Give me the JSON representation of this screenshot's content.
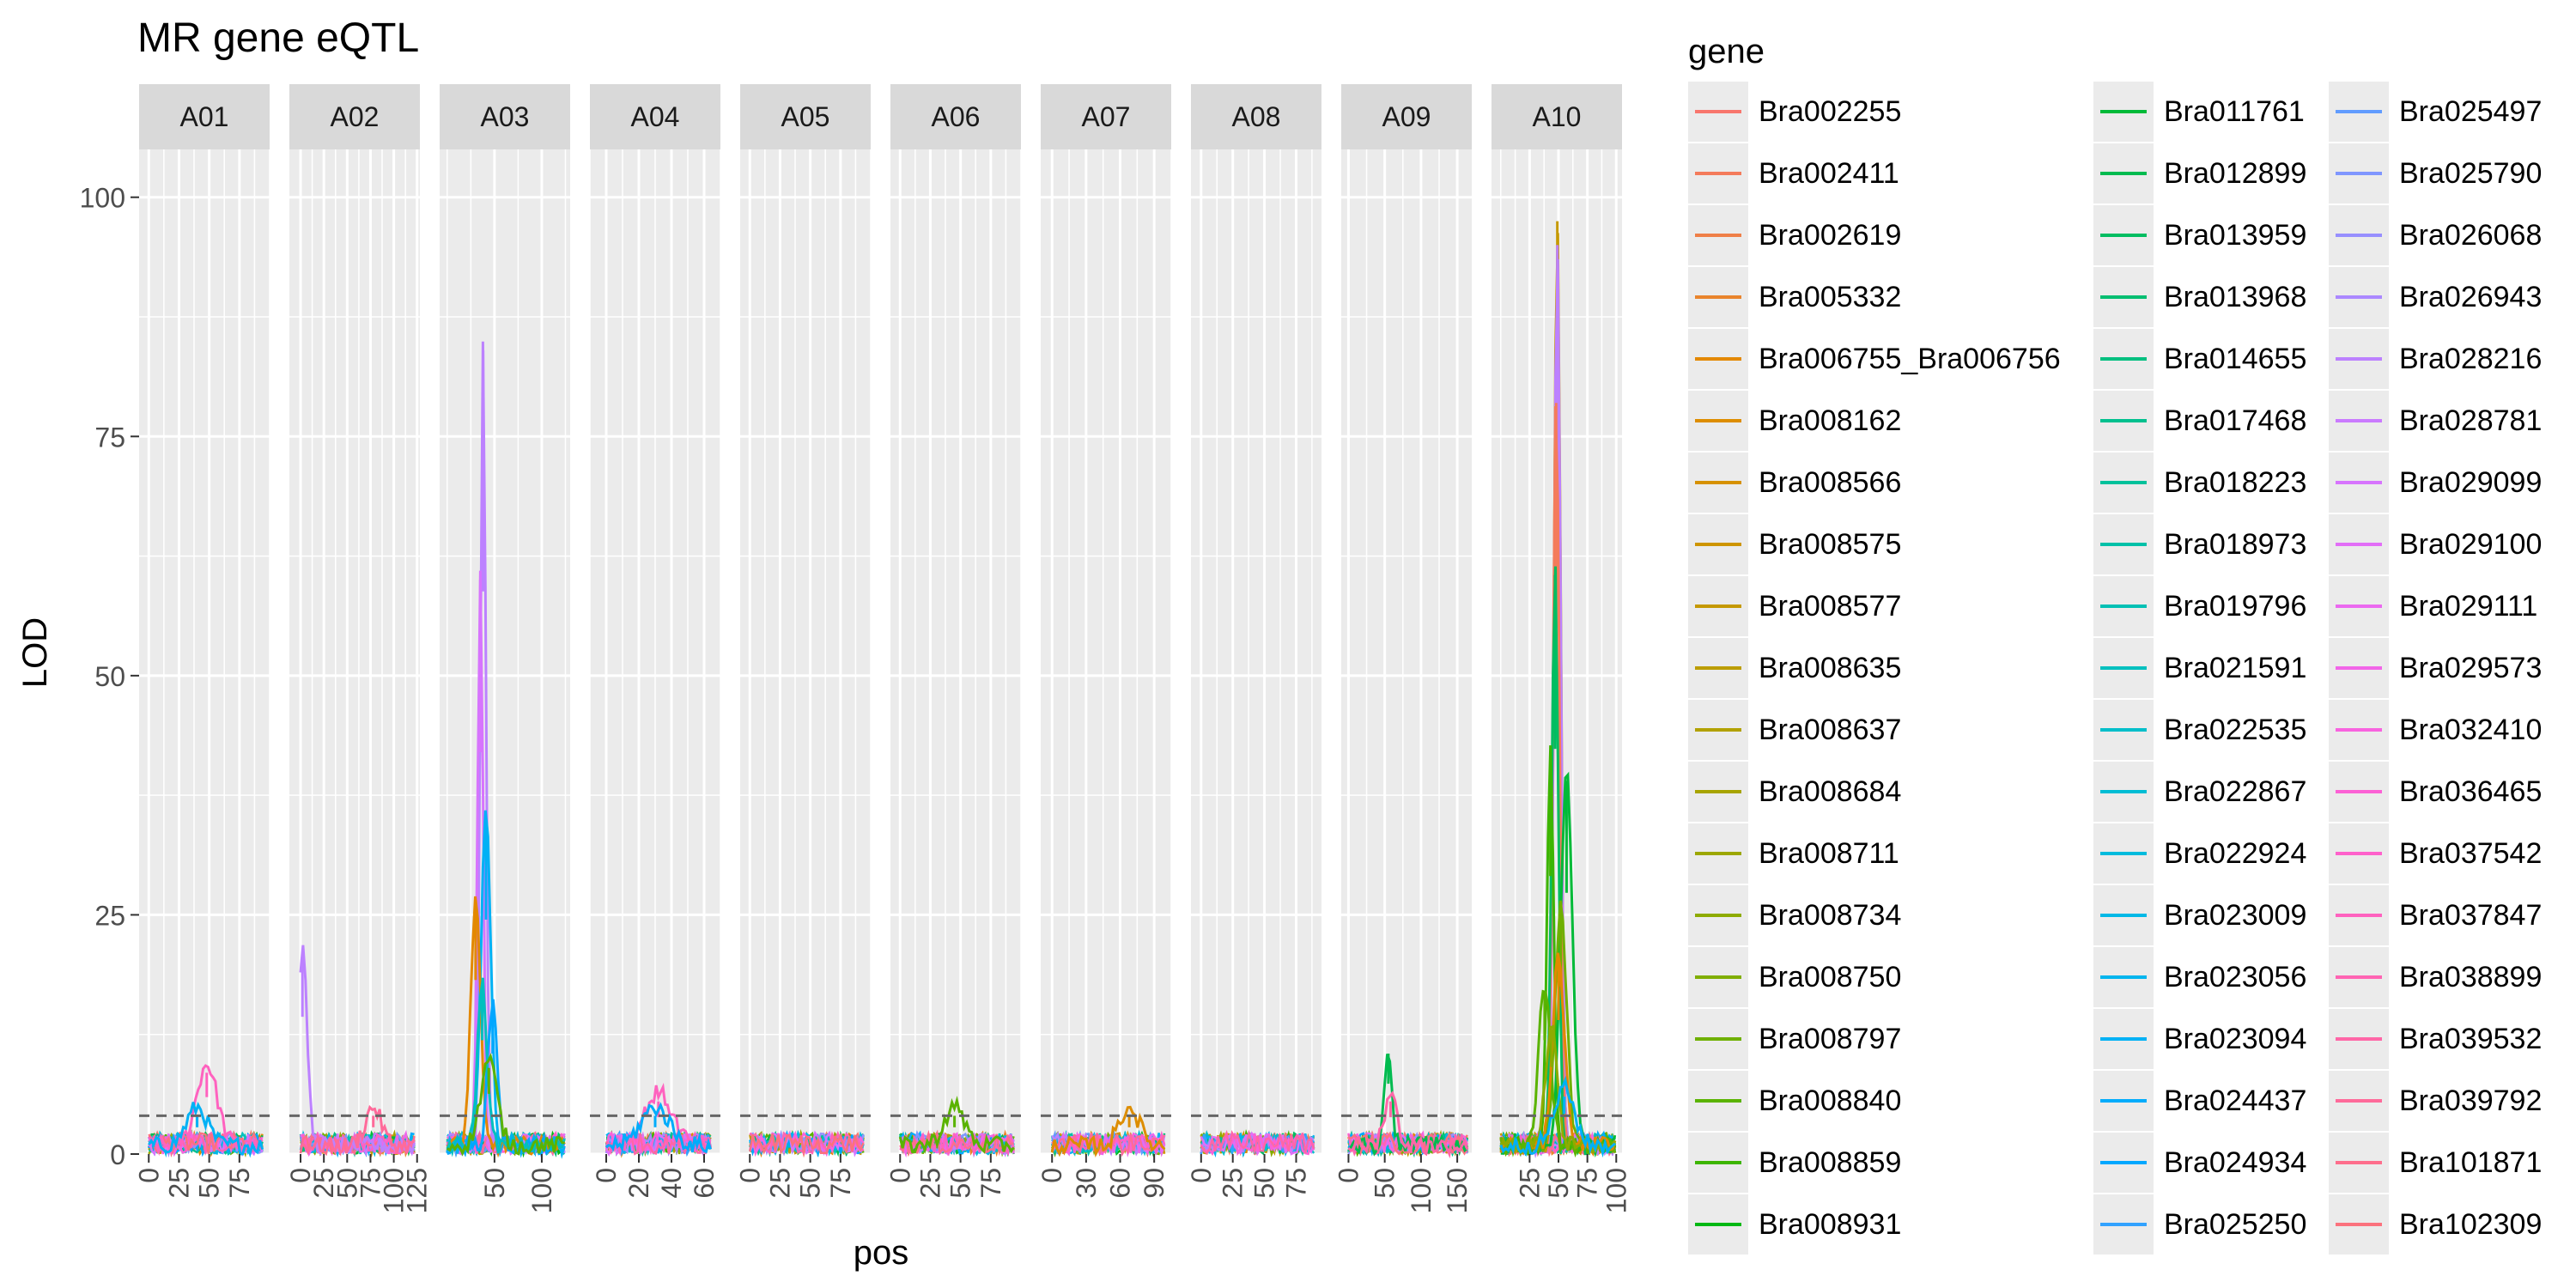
{
  "chart_data": {
    "type": "line",
    "title": "MR gene eQTL",
    "xlabel": "pos",
    "ylabel": "LOD",
    "ylim": [
      0,
      105
    ],
    "y_ticks": [
      0,
      25,
      50,
      75,
      100
    ],
    "threshold": 4,
    "grid": true,
    "legend": {
      "title": "gene",
      "position": "right"
    },
    "panels": [
      {
        "name": "A01",
        "xlim": [
          -8,
          100
        ],
        "ticks": [
          0,
          25,
          50,
          75
        ]
      },
      {
        "name": "A02",
        "xlim": [
          -12,
          128
        ],
        "ticks": [
          0,
          25,
          50,
          75,
          100,
          125
        ]
      },
      {
        "name": "A03",
        "xlim": [
          -8,
          130
        ],
        "ticks": [
          50,
          100
        ]
      },
      {
        "name": "A04",
        "xlim": [
          -10,
          70
        ],
        "ticks": [
          0,
          20,
          40,
          60
        ]
      },
      {
        "name": "A05",
        "xlim": [
          -8,
          100
        ],
        "ticks": [
          0,
          25,
          50,
          75
        ]
      },
      {
        "name": "A06",
        "xlim": [
          -8,
          100
        ],
        "ticks": [
          0,
          25,
          50,
          75
        ]
      },
      {
        "name": "A07",
        "xlim": [
          -10,
          105
        ],
        "ticks": [
          0,
          30,
          60,
          90
        ]
      },
      {
        "name": "A08",
        "xlim": [
          -8,
          95
        ],
        "ticks": [
          0,
          25,
          50,
          75
        ]
      },
      {
        "name": "A09",
        "xlim": [
          -10,
          170
        ],
        "ticks": [
          0,
          50,
          100,
          150
        ]
      },
      {
        "name": "A10",
        "xlim": [
          -8,
          105
        ],
        "ticks": [
          25,
          50,
          75,
          100
        ]
      }
    ],
    "series": [
      {
        "name": "Bra002255"
      },
      {
        "name": "Bra002411"
      },
      {
        "name": "Bra002619"
      },
      {
        "name": "Bra005332"
      },
      {
        "name": "Bra006755_Bra006756"
      },
      {
        "name": "Bra008162"
      },
      {
        "name": "Bra008566"
      },
      {
        "name": "Bra008575"
      },
      {
        "name": "Bra008577"
      },
      {
        "name": "Bra008635"
      },
      {
        "name": "Bra008637"
      },
      {
        "name": "Bra008684"
      },
      {
        "name": "Bra008711"
      },
      {
        "name": "Bra008734"
      },
      {
        "name": "Bra008750"
      },
      {
        "name": "Bra008797"
      },
      {
        "name": "Bra008840"
      },
      {
        "name": "Bra008859"
      },
      {
        "name": "Bra008931"
      },
      {
        "name": "Bra011761"
      },
      {
        "name": "Bra012899"
      },
      {
        "name": "Bra013959"
      },
      {
        "name": "Bra013968"
      },
      {
        "name": "Bra014655"
      },
      {
        "name": "Bra017468"
      },
      {
        "name": "Bra018223"
      },
      {
        "name": "Bra018973"
      },
      {
        "name": "Bra019796"
      },
      {
        "name": "Bra021591"
      },
      {
        "name": "Bra022535"
      },
      {
        "name": "Bra022867"
      },
      {
        "name": "Bra022924"
      },
      {
        "name": "Bra023009"
      },
      {
        "name": "Bra023056"
      },
      {
        "name": "Bra023094"
      },
      {
        "name": "Bra024437"
      },
      {
        "name": "Bra024934"
      },
      {
        "name": "Bra025250"
      },
      {
        "name": "Bra025497"
      },
      {
        "name": "Bra025790"
      },
      {
        "name": "Bra026068"
      },
      {
        "name": "Bra026943"
      },
      {
        "name": "Bra028216"
      },
      {
        "name": "Bra028781"
      },
      {
        "name": "Bra029099"
      },
      {
        "name": "Bra029100"
      },
      {
        "name": "Bra029111"
      },
      {
        "name": "Bra029573"
      },
      {
        "name": "Bra032410"
      },
      {
        "name": "Bra036465"
      },
      {
        "name": "Bra037542"
      },
      {
        "name": "Bra037847"
      },
      {
        "name": "Bra038899"
      },
      {
        "name": "Bra039532"
      },
      {
        "name": "Bra039792"
      },
      {
        "name": "Bra101871"
      },
      {
        "name": "Bra102309"
      }
    ],
    "peaks": [
      {
        "panel": "A01",
        "gene": "Bra037847",
        "x": 48,
        "lod": 8.5
      },
      {
        "panel": "A01",
        "gene": "Bra023094",
        "x": 40,
        "lod": 4
      },
      {
        "panel": "A02",
        "gene": "Bra028216",
        "x": 2,
        "lod": 20.5
      },
      {
        "panel": "A02",
        "gene": "Bra039792",
        "x": 78,
        "lod": 4
      },
      {
        "panel": "A03",
        "gene": "Bra028216",
        "x": 38,
        "lod": 84
      },
      {
        "panel": "A03",
        "gene": "Bra029099",
        "x": 35,
        "lod": 60
      },
      {
        "panel": "A03",
        "gene": "Bra023094",
        "x": 41,
        "lod": 35
      },
      {
        "panel": "A03",
        "gene": "Bra006755_Bra006756",
        "x": 30,
        "lod": 26
      },
      {
        "panel": "A03",
        "gene": "Bra024934",
        "x": 48,
        "lod": 15
      },
      {
        "panel": "A03",
        "gene": "Bra021591",
        "x": 37,
        "lod": 17
      },
      {
        "panel": "A03",
        "gene": "Bra008840",
        "x": 44,
        "lod": 9
      },
      {
        "panel": "A04",
        "gene": "Bra037847",
        "x": 32,
        "lod": 5.5
      },
      {
        "panel": "A04",
        "gene": "Bra024437",
        "x": 30,
        "lod": 4
      },
      {
        "panel": "A06",
        "gene": "Bra008840",
        "x": 45,
        "lod": 4
      },
      {
        "panel": "A07",
        "gene": "Bra008162",
        "x": 68,
        "lod": 4
      },
      {
        "panel": "A09",
        "gene": "Bra012899",
        "x": 55,
        "lod": 10.5
      },
      {
        "panel": "A09",
        "gene": "Bra039532",
        "x": 58,
        "lod": 5.5
      },
      {
        "panel": "A10",
        "gene": "Bra008577",
        "x": 49,
        "lod": 97.5
      },
      {
        "panel": "A10",
        "gene": "Bra028216",
        "x": 49,
        "lod": 95
      },
      {
        "panel": "A10",
        "gene": "Bra002411",
        "x": 48,
        "lod": 78.5
      },
      {
        "panel": "A10",
        "gene": "Bra013959",
        "x": 47,
        "lod": 60.5
      },
      {
        "panel": "A10",
        "gene": "Bra008859",
        "x": 43,
        "lod": 41.5
      },
      {
        "panel": "A10",
        "gene": "Bra011761",
        "x": 57,
        "lod": 39
      },
      {
        "panel": "A10",
        "gene": "Bra008797",
        "x": 52,
        "lod": 25
      },
      {
        "panel": "A10",
        "gene": "Bra008840",
        "x": 38,
        "lod": 17
      },
      {
        "panel": "A10",
        "gene": "Bra006755_Bra006756",
        "x": 50,
        "lod": 20
      },
      {
        "panel": "A10",
        "gene": "Bra008734",
        "x": 44,
        "lod": 13
      },
      {
        "panel": "A10",
        "gene": "Bra023094",
        "x": 55,
        "lod": 6
      }
    ]
  }
}
